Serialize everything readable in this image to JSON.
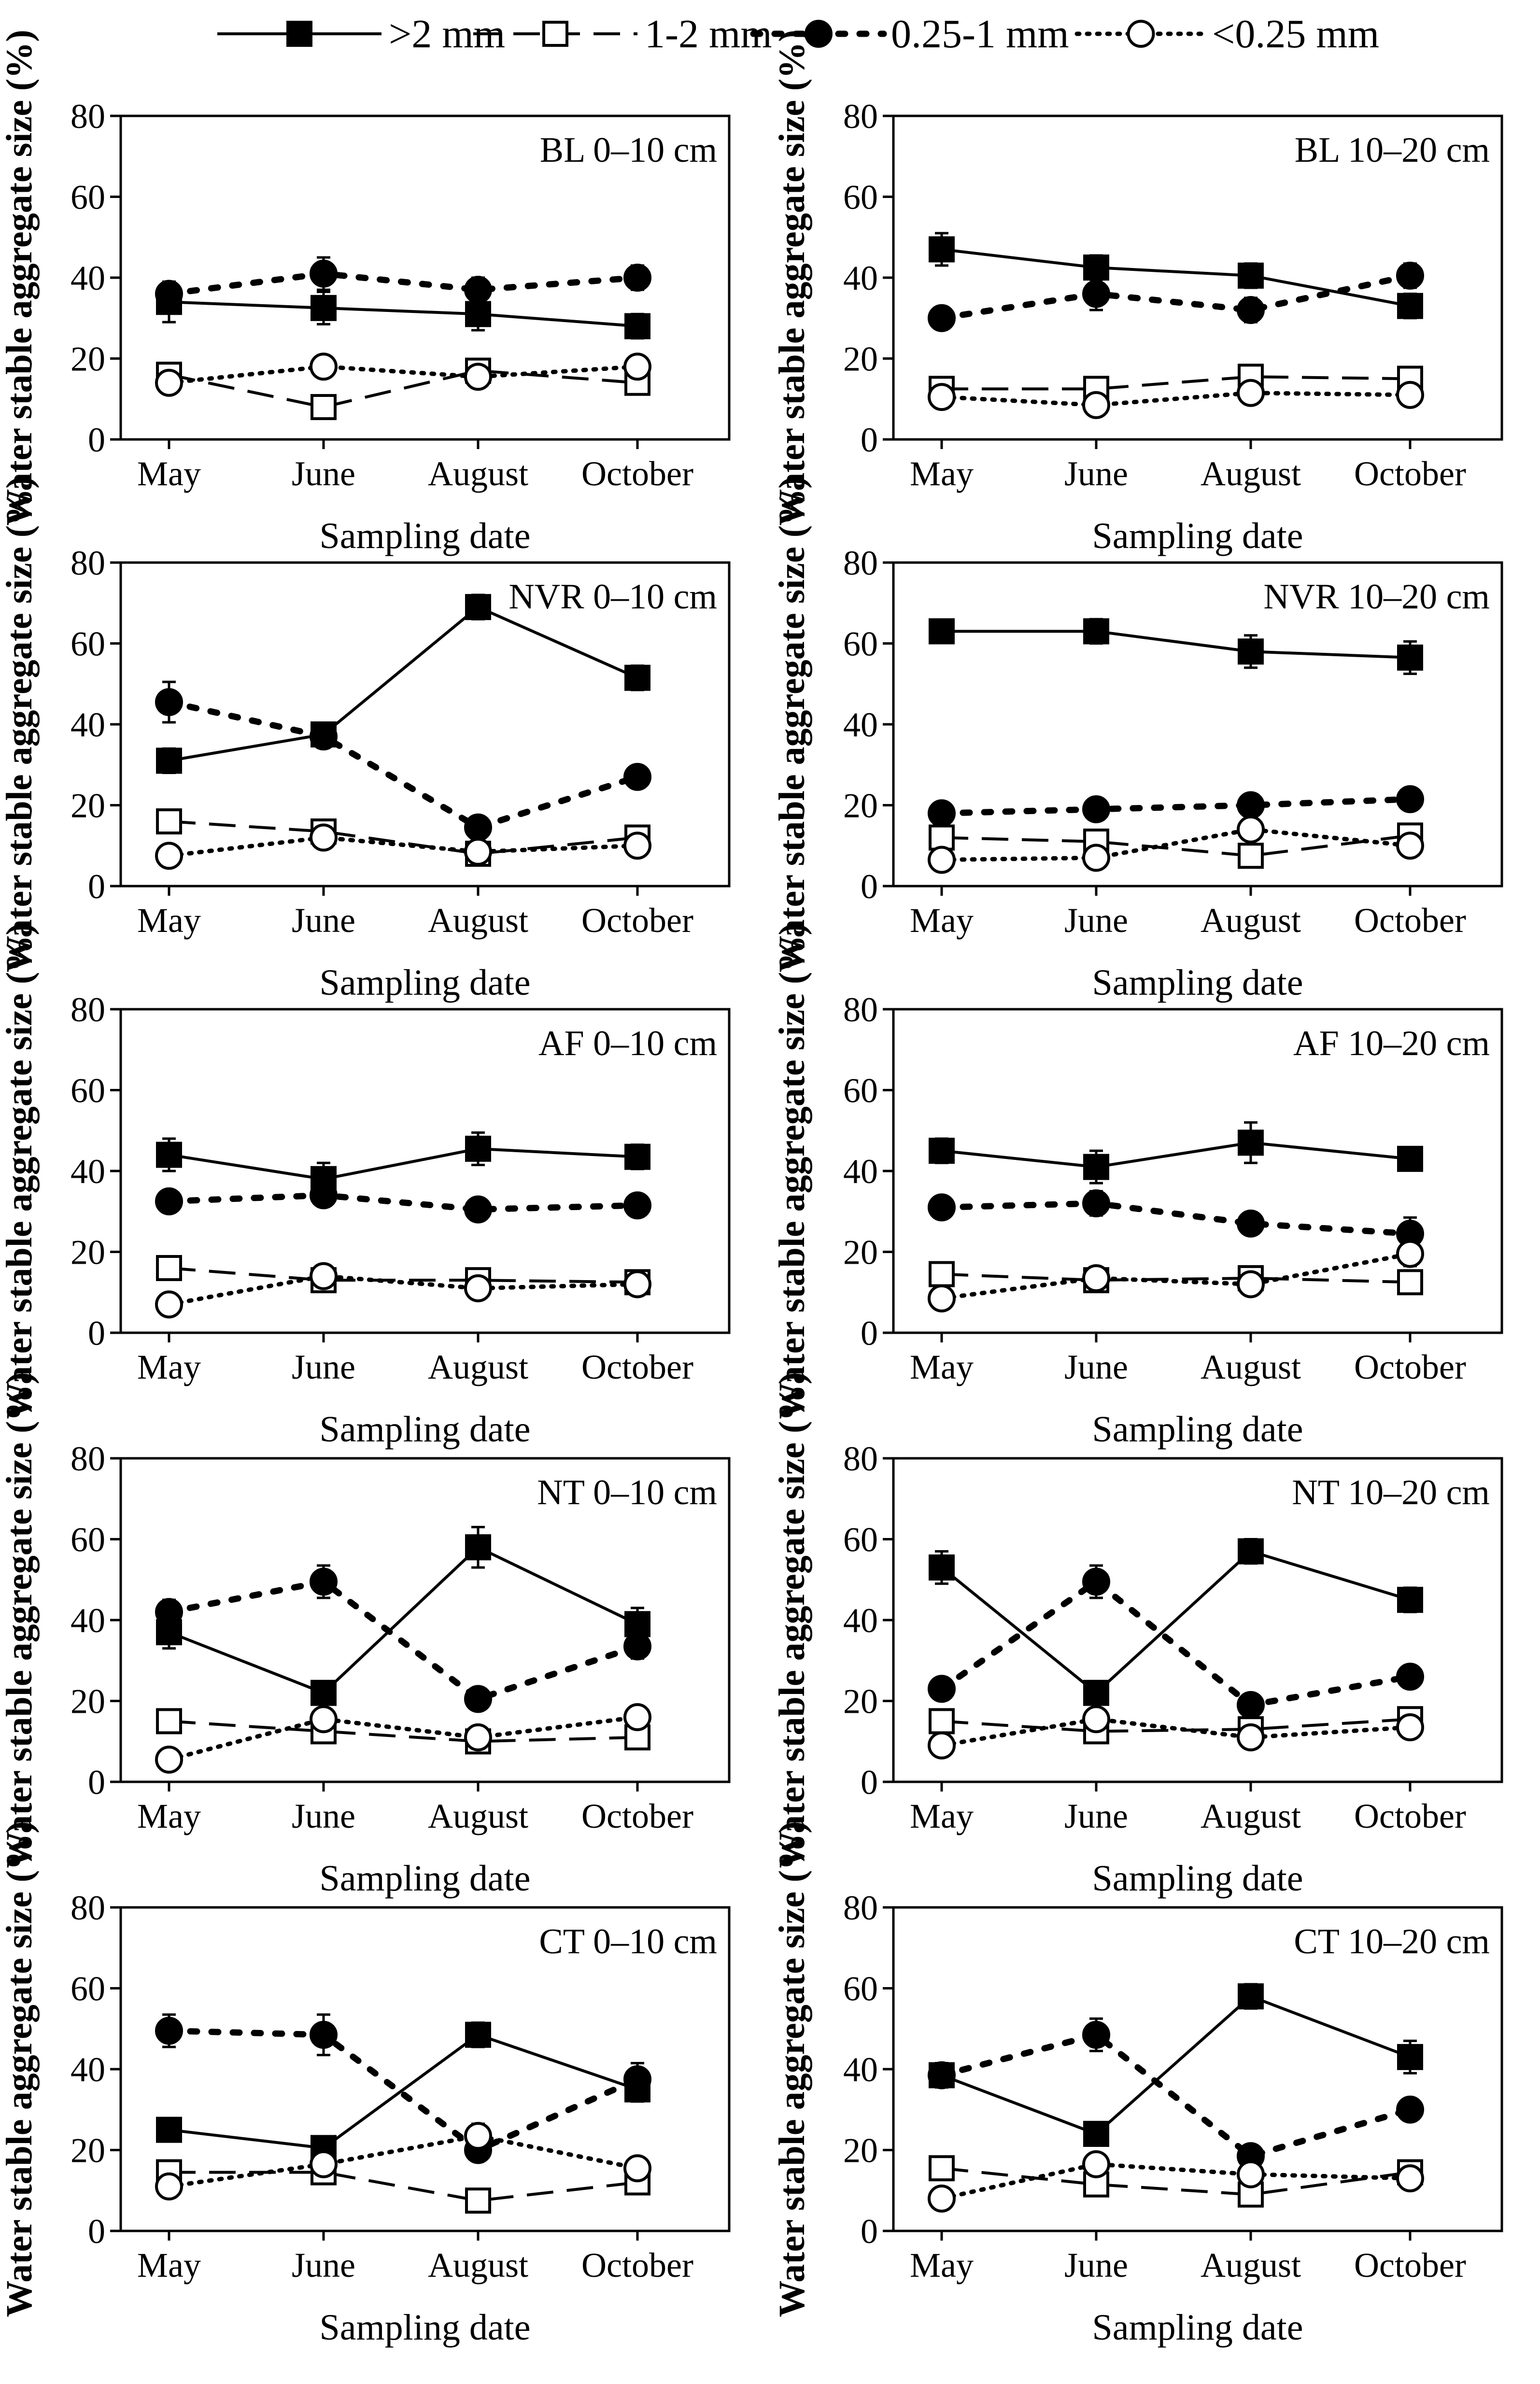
{
  "legend": [
    {
      "label": ">2 mm",
      "style": "solid",
      "marker": "square-filled"
    },
    {
      "label": "1-2 mm",
      "style": "dashed",
      "marker": "square-open"
    },
    {
      "label": "0.25-1 mm",
      "style": "dotted-thick",
      "marker": "circle-filled"
    },
    {
      "label": "<0.25 mm",
      "style": "dotted-thin",
      "marker": "circle-open"
    }
  ],
  "chart_data": [
    {
      "type": "line",
      "panel_label": "BL 0–10 cm",
      "categories": [
        "May",
        "June",
        "August",
        "October"
      ],
      "xlabel": "Sampling date",
      "ylabel": "Water stable aggregate size (%)",
      "ylim": [
        0,
        80
      ],
      "yticks": [
        0,
        20,
        40,
        60,
        80
      ],
      "series": [
        {
          "name": ">2 mm",
          "values": [
            34,
            32.5,
            31,
            28
          ],
          "err": [
            5,
            4,
            4,
            3
          ]
        },
        {
          "name": "1-2 mm",
          "values": [
            16,
            8,
            17,
            14
          ],
          "err": [
            1,
            1,
            1,
            1
          ]
        },
        {
          "name": "0.25-1 mm",
          "values": [
            36,
            41,
            37,
            40
          ],
          "err": [
            3,
            4,
            3,
            3
          ]
        },
        {
          "name": "<0.25 mm",
          "values": [
            14,
            18,
            15.5,
            18
          ],
          "err": [
            1,
            1,
            1,
            1
          ]
        }
      ]
    },
    {
      "type": "line",
      "panel_label": "BL 10–20 cm",
      "categories": [
        "May",
        "June",
        "August",
        "October"
      ],
      "xlabel": "Sampling date",
      "ylabel": "Water stable aggregate size (%)",
      "ylim": [
        0,
        80
      ],
      "yticks": [
        0,
        20,
        40,
        60,
        80
      ],
      "series": [
        {
          "name": ">2 mm",
          "values": [
            47,
            42.5,
            40.5,
            33
          ],
          "err": [
            4,
            3,
            3,
            3
          ]
        },
        {
          "name": "1-2 mm",
          "values": [
            12.5,
            12.5,
            15.5,
            15
          ],
          "err": [
            1,
            1,
            1,
            1
          ]
        },
        {
          "name": "0.25-1 mm",
          "values": [
            30,
            36,
            32,
            40.5
          ],
          "err": [
            2,
            4,
            3,
            3
          ]
        },
        {
          "name": "<0.25 mm",
          "values": [
            10.5,
            8.5,
            11.5,
            11
          ],
          "err": [
            1,
            1,
            1,
            1
          ]
        }
      ]
    },
    {
      "type": "line",
      "panel_label": "NVR 0–10 cm",
      "categories": [
        "May",
        "June",
        "August",
        "October"
      ],
      "xlabel": "Sampling date",
      "ylabel": "Water stable aggregate size (%)",
      "ylim": [
        0,
        80
      ],
      "yticks": [
        0,
        20,
        40,
        60,
        80
      ],
      "series": [
        {
          "name": ">2 mm",
          "values": [
            31,
            37.5,
            69,
            51.5
          ],
          "err": [
            3,
            2,
            3,
            3
          ]
        },
        {
          "name": "1-2 mm",
          "values": [
            16,
            13.5,
            8,
            12
          ],
          "err": [
            1,
            1,
            1,
            1
          ]
        },
        {
          "name": "0.25-1 mm",
          "values": [
            45.5,
            37,
            14.5,
            27
          ],
          "err": [
            5,
            2,
            1,
            2
          ]
        },
        {
          "name": "<0.25 mm",
          "values": [
            7.5,
            12,
            8.5,
            10
          ],
          "err": [
            1,
            1,
            1,
            1
          ]
        }
      ]
    },
    {
      "type": "line",
      "panel_label": "NVR 10–20 cm",
      "categories": [
        "May",
        "June",
        "August",
        "October"
      ],
      "xlabel": "Sampling date",
      "ylabel": "Water stable aggregate size (%)",
      "ylim": [
        0,
        80
      ],
      "yticks": [
        0,
        20,
        40,
        60,
        80
      ],
      "series": [
        {
          "name": ">2 mm",
          "values": [
            63,
            63,
            58,
            56.5
          ],
          "err": [
            2,
            3,
            4,
            4
          ]
        },
        {
          "name": "1-2 mm",
          "values": [
            12,
            11,
            7.5,
            12.5
          ],
          "err": [
            1,
            1,
            1,
            1
          ]
        },
        {
          "name": "0.25-1 mm",
          "values": [
            18,
            19,
            20,
            21.5
          ],
          "err": [
            1,
            1,
            1,
            2
          ]
        },
        {
          "name": "<0.25 mm",
          "values": [
            6.5,
            7,
            14,
            10
          ],
          "err": [
            1,
            1,
            1,
            1
          ]
        }
      ]
    },
    {
      "type": "line",
      "panel_label": "AF 0–10 cm",
      "categories": [
        "May",
        "June",
        "August",
        "October"
      ],
      "xlabel": "Sampling date",
      "ylabel": "Water stable aggregate size (%)",
      "ylim": [
        0,
        80
      ],
      "yticks": [
        0,
        20,
        40,
        60,
        80
      ],
      "series": [
        {
          "name": ">2 mm",
          "values": [
            44,
            38,
            45.5,
            43.5
          ],
          "err": [
            4,
            4,
            4,
            3
          ]
        },
        {
          "name": "1-2 mm",
          "values": [
            16,
            13,
            13,
            12.5
          ],
          "err": [
            1,
            1,
            1,
            1
          ]
        },
        {
          "name": "0.25-1 mm",
          "values": [
            32.5,
            34,
            30.5,
            31.5
          ],
          "err": [
            1,
            2,
            2,
            2
          ]
        },
        {
          "name": "<0.25 mm",
          "values": [
            7,
            14,
            11,
            12
          ],
          "err": [
            1,
            1,
            1,
            1
          ]
        }
      ]
    },
    {
      "type": "line",
      "panel_label": "AF 10–20 cm",
      "categories": [
        "May",
        "June",
        "August",
        "October"
      ],
      "xlabel": "Sampling date",
      "ylabel": "Water stable aggregate size (%)",
      "ylim": [
        0,
        80
      ],
      "yticks": [
        0,
        20,
        40,
        60,
        80
      ],
      "series": [
        {
          "name": ">2 mm",
          "values": [
            45,
            41,
            47,
            43
          ],
          "err": [
            3,
            4,
            5,
            1
          ]
        },
        {
          "name": "1-2 mm",
          "values": [
            14.5,
            13,
            13.5,
            12.5
          ],
          "err": [
            1,
            1,
            1,
            1
          ]
        },
        {
          "name": "0.25-1 mm",
          "values": [
            31,
            32,
            27,
            24.5
          ],
          "err": [
            2,
            3,
            2,
            4
          ]
        },
        {
          "name": "<0.25 mm",
          "values": [
            8.5,
            13.5,
            12,
            19.5
          ],
          "err": [
            1,
            2,
            1,
            3
          ]
        }
      ]
    },
    {
      "type": "line",
      "panel_label": "NT 0–10 cm",
      "categories": [
        "May",
        "June",
        "August",
        "October"
      ],
      "xlabel": "Sampling date",
      "ylabel": "Water stable aggregate size (%)",
      "ylim": [
        0,
        80
      ],
      "yticks": [
        0,
        20,
        40,
        60,
        80
      ],
      "series": [
        {
          "name": ">2 mm",
          "values": [
            37,
            22,
            58,
            39
          ],
          "err": [
            4,
            2,
            5,
            4
          ]
        },
        {
          "name": "1-2 mm",
          "values": [
            15,
            12.5,
            10,
            11
          ],
          "err": [
            1,
            1,
            1,
            1
          ]
        },
        {
          "name": "0.25-1 mm",
          "values": [
            42,
            49.5,
            20.5,
            33.5
          ],
          "err": [
            3,
            4,
            2,
            3
          ]
        },
        {
          "name": "<0.25 mm",
          "values": [
            5.5,
            15.5,
            11,
            16
          ],
          "err": [
            1,
            1,
            1,
            1
          ]
        }
      ]
    },
    {
      "type": "line",
      "panel_label": "NT 10–20 cm",
      "categories": [
        "May",
        "June",
        "August",
        "October"
      ],
      "xlabel": "Sampling date",
      "ylabel": "Water stable aggregate size (%)",
      "ylim": [
        0,
        80
      ],
      "yticks": [
        0,
        20,
        40,
        60,
        80
      ],
      "series": [
        {
          "name": ">2 mm",
          "values": [
            53,
            22,
            57,
            45
          ],
          "err": [
            4,
            2,
            3,
            3
          ]
        },
        {
          "name": "1-2 mm",
          "values": [
            15,
            12.5,
            13,
            15.5
          ],
          "err": [
            1,
            1,
            1,
            1
          ]
        },
        {
          "name": "0.25-1 mm",
          "values": [
            23,
            49.5,
            19,
            26
          ],
          "err": [
            1,
            4,
            1,
            1
          ]
        },
        {
          "name": "<0.25 mm",
          "values": [
            9,
            15.5,
            11,
            13.5
          ],
          "err": [
            1,
            1,
            1,
            1
          ]
        }
      ]
    },
    {
      "type": "line",
      "panel_label": "CT 0–10 cm",
      "categories": [
        "May",
        "June",
        "August",
        "October"
      ],
      "xlabel": "Sampling date",
      "ylabel": "Water stable aggregate size (%)",
      "ylim": [
        0,
        80
      ],
      "yticks": [
        0,
        20,
        40,
        60,
        80
      ],
      "series": [
        {
          "name": ">2 mm",
          "values": [
            25,
            20.5,
            48.5,
            35
          ],
          "err": [
            2,
            2,
            3,
            3
          ]
        },
        {
          "name": "1-2 mm",
          "values": [
            14.5,
            14.5,
            7.5,
            12
          ],
          "err": [
            1,
            1,
            1,
            1
          ]
        },
        {
          "name": "0.25-1 mm",
          "values": [
            49.5,
            48.5,
            20,
            37.5
          ],
          "err": [
            4,
            5,
            2,
            4
          ]
        },
        {
          "name": "<0.25 mm",
          "values": [
            11,
            16.5,
            23.5,
            15.5
          ],
          "err": [
            1,
            1,
            3,
            1
          ]
        }
      ]
    },
    {
      "type": "line",
      "panel_label": "CT 10–20 cm",
      "categories": [
        "May",
        "June",
        "August",
        "October"
      ],
      "xlabel": "Sampling date",
      "ylabel": "Water stable aggregate size (%)",
      "ylim": [
        0,
        80
      ],
      "yticks": [
        0,
        20,
        40,
        60,
        80
      ],
      "series": [
        {
          "name": ">2 mm",
          "values": [
            38.5,
            24,
            58,
            43
          ],
          "err": [
            3,
            2,
            3,
            4
          ]
        },
        {
          "name": "1-2 mm",
          "values": [
            15.5,
            11.5,
            9,
            14.5
          ],
          "err": [
            1,
            1,
            1,
            1
          ]
        },
        {
          "name": "0.25-1 mm",
          "values": [
            38.5,
            48.5,
            18.5,
            30
          ],
          "err": [
            3,
            4,
            1,
            2
          ]
        },
        {
          "name": "<0.25 mm",
          "values": [
            8,
            16.5,
            14,
            13
          ],
          "err": [
            1,
            2,
            1,
            1
          ]
        }
      ]
    }
  ]
}
